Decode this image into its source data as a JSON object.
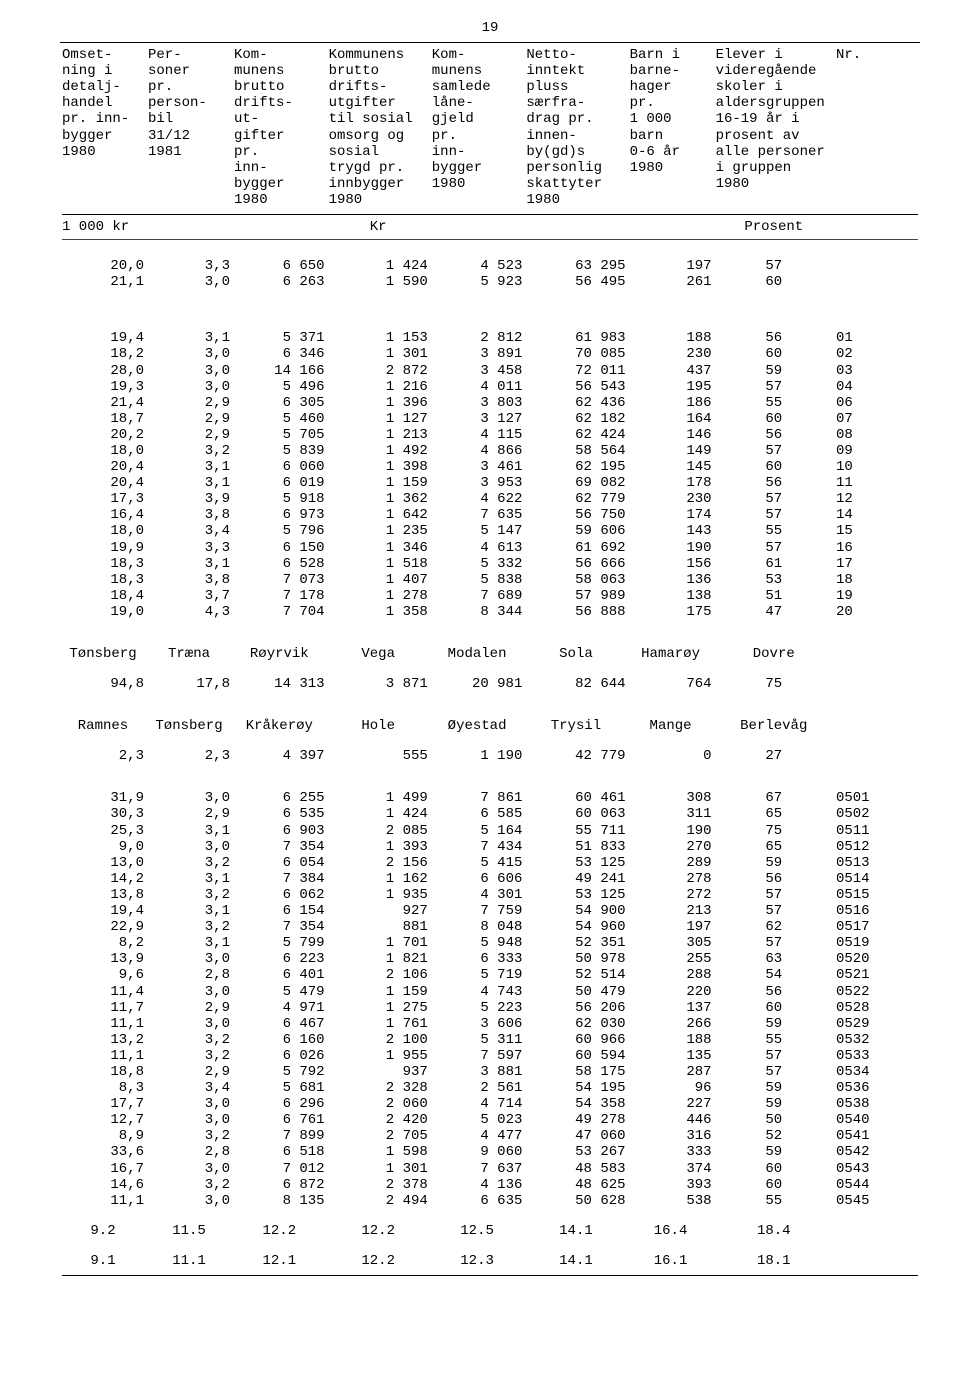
{
  "page_number": "19",
  "headers": [
    "Omset-\nning i\ndetalj-\nhandel\npr. inn-\nbygger\n1980",
    "Per-\nsoner\npr.\nperson-\nbil\n31/12\n1981",
    "Kom-\nmunens\nbrutto\ndrifts-\nut-\ngifter\npr.\ninn-\nbygger\n1980",
    "Kommunens\nbrutto\ndrifts-\nutgifter\ntil sosial\nomsorg og\nsosial\ntrygd pr.\ninnbygger\n1980",
    "Kom-\nmunens\nsamlede\nlåne-\ngjeld\npr.\ninn-\nbygger\n1980",
    "Netto-\ninntekt\npluss\nsærfra-\ndrag pr.\ninnen-\nby(gd)s\npersonlig\nskattyter\n1980",
    "Barn i\nbarne-\nhager\npr.\n1 000\nbarn\n0-6 år\n1980",
    "Elever i\nvideregående\nskoler i\naldersgruppen\n16-19 år i\nprosent av\nalle personer\ni gruppen\n1980",
    "Nr."
  ],
  "unit_row": [
    "1 000 kr",
    "",
    "",
    "Kr",
    "",
    "",
    "",
    "Prosent",
    ""
  ],
  "top_rows": [
    [
      "20,0",
      "3,3",
      "6 650",
      "1 424",
      "4 523",
      "63 295",
      "197",
      "57",
      ""
    ],
    [
      "21,1",
      "3,0",
      "6 263",
      "1 590",
      "5 923",
      "56 495",
      "261",
      "60",
      ""
    ]
  ],
  "block1": [
    [
      "19,4",
      "3,1",
      "5 371",
      "1 153",
      "2 812",
      "61 983",
      "188",
      "56",
      "01"
    ],
    [
      "18,2",
      "3,0",
      "6 346",
      "1 301",
      "3 891",
      "70 085",
      "230",
      "60",
      "02"
    ],
    [
      "28,0",
      "3,0",
      "14 166",
      "2 872",
      "3 458",
      "72 011",
      "437",
      "59",
      "03"
    ],
    [
      "19,3",
      "3,0",
      "5 496",
      "1 216",
      "4 011",
      "56 543",
      "195",
      "57",
      "04"
    ],
    [
      "21,4",
      "2,9",
      "6 305",
      "1 396",
      "3 803",
      "62 436",
      "186",
      "55",
      "06"
    ],
    [
      "18,7",
      "2,9",
      "5 460",
      "1 127",
      "3 127",
      "62 182",
      "164",
      "60",
      "07"
    ],
    [
      "20,2",
      "2,9",
      "5 705",
      "1 213",
      "4 115",
      "62 424",
      "146",
      "56",
      "08"
    ],
    [
      "18,0",
      "3,2",
      "5 839",
      "1 492",
      "4 866",
      "58 564",
      "149",
      "57",
      "09"
    ],
    [
      "20,4",
      "3,1",
      "6 060",
      "1 398",
      "3 461",
      "62 195",
      "145",
      "60",
      "10"
    ],
    [
      "20,4",
      "3,1",
      "6 019",
      "1 159",
      "3 953",
      "69 082",
      "178",
      "56",
      "11"
    ],
    [
      "17,3",
      "3,9",
      "5 918",
      "1 362",
      "4 622",
      "62 779",
      "230",
      "57",
      "12"
    ],
    [
      "16,4",
      "3,8",
      "6 973",
      "1 642",
      "7 635",
      "56 750",
      "174",
      "57",
      "14"
    ],
    [
      "18,0",
      "3,4",
      "5 796",
      "1 235",
      "5 147",
      "59 606",
      "143",
      "55",
      "15"
    ],
    [
      "19,9",
      "3,3",
      "6 150",
      "1 346",
      "4 613",
      "61 692",
      "190",
      "57",
      "16"
    ],
    [
      "18,3",
      "3,1",
      "6 528",
      "1 518",
      "5 332",
      "56 666",
      "156",
      "61",
      "17"
    ],
    [
      "18,3",
      "3,8",
      "7 073",
      "1 407",
      "5 838",
      "58 063",
      "136",
      "53",
      "18"
    ],
    [
      "18,4",
      "3,7",
      "7 178",
      "1 278",
      "7 689",
      "57 989",
      "138",
      "51",
      "19"
    ],
    [
      "19,0",
      "4,3",
      "7 704",
      "1 358",
      "8 344",
      "56 888",
      "175",
      "47",
      "20"
    ]
  ],
  "name_row1": [
    "Tønsberg",
    "Træna",
    "Røyrvik",
    "Vega",
    "Modalen",
    "Sola",
    "Hamarøy",
    "Dovre",
    ""
  ],
  "name_row1_values": [
    "94,8",
    "17,8",
    "14 313",
    "3 871",
    "20 981",
    "82 644",
    "764",
    "75",
    ""
  ],
  "name_row2": [
    "Ramnes",
    "Tønsberg",
    "Kråkerøy",
    "Hole",
    "Øyestad",
    "Trysil",
    "Mange",
    "Berlevåg",
    ""
  ],
  "name_row2_values": [
    "2,3",
    "2,3",
    "4 397",
    "555",
    "1 190",
    "42 779",
    "0",
    "27",
    ""
  ],
  "block2": [
    [
      "31,9",
      "3,0",
      "6 255",
      "1 499",
      "7 861",
      "60 461",
      "308",
      "67",
      "0501"
    ],
    [
      "30,3",
      "2,9",
      "6 535",
      "1 424",
      "6 585",
      "60 063",
      "311",
      "65",
      "0502"
    ],
    [
      "25,3",
      "3,1",
      "6 903",
      "2 085",
      "5 164",
      "55 711",
      "190",
      "75",
      "0511"
    ],
    [
      "9,0",
      "3,0",
      "7 354",
      "1 393",
      "7 434",
      "51 833",
      "270",
      "65",
      "0512"
    ],
    [
      "13,0",
      "3,2",
      "6 054",
      "2 156",
      "5 415",
      "53 125",
      "289",
      "59",
      "0513"
    ],
    [
      "14,2",
      "3,1",
      "7 384",
      "1 162",
      "6 606",
      "49 241",
      "278",
      "56",
      "0514"
    ],
    [
      "13,8",
      "3,2",
      "6 062",
      "1 935",
      "4 301",
      "53 125",
      "272",
      "57",
      "0515"
    ],
    [
      "19,4",
      "3,1",
      "6 154",
      "927",
      "7 759",
      "54 900",
      "213",
      "57",
      "0516"
    ],
    [
      "22,9",
      "3,2",
      "7 354",
      "881",
      "8 048",
      "54 960",
      "197",
      "62",
      "0517"
    ],
    [
      "8,2",
      "3,1",
      "5 799",
      "1 701",
      "5 948",
      "52 351",
      "305",
      "57",
      "0519"
    ],
    [
      "13,9",
      "3,0",
      "6 223",
      "1 821",
      "6 333",
      "50 978",
      "255",
      "63",
      "0520"
    ],
    [
      "9,6",
      "2,8",
      "6 401",
      "2 106",
      "5 719",
      "52 514",
      "288",
      "54",
      "0521"
    ],
    [
      "11,4",
      "3,0",
      "5 479",
      "1 159",
      "4 743",
      "50 479",
      "220",
      "56",
      "0522"
    ],
    [
      "11,7",
      "2,9",
      "4 971",
      "1 275",
      "5 223",
      "56 206",
      "137",
      "60",
      "0528"
    ],
    [
      "11,1",
      "3,0",
      "6 467",
      "1 761",
      "3 606",
      "62 030",
      "266",
      "59",
      "0529"
    ],
    [
      "13,2",
      "3,2",
      "6 160",
      "2 100",
      "5 311",
      "60 966",
      "188",
      "55",
      "0532"
    ],
    [
      "11,1",
      "3,2",
      "6 026",
      "1 955",
      "7 597",
      "60 594",
      "135",
      "57",
      "0533"
    ],
    [
      "18,8",
      "2,9",
      "5 792",
      "937",
      "3 881",
      "58 175",
      "287",
      "57",
      "0534"
    ],
    [
      "8,3",
      "3,4",
      "5 681",
      "2 328",
      "2 561",
      "54 195",
      "96",
      "59",
      "0536"
    ],
    [
      "17,7",
      "3,0",
      "6 296",
      "2 060",
      "4 714",
      "54 358",
      "227",
      "59",
      "0538"
    ],
    [
      "12,7",
      "3,0",
      "6 761",
      "2 420",
      "5 023",
      "49 278",
      "446",
      "50",
      "0540"
    ],
    [
      "8,9",
      "3,2",
      "7 899",
      "2 705",
      "4 477",
      "47 060",
      "316",
      "52",
      "0541"
    ],
    [
      "33,6",
      "2,8",
      "6 518",
      "1 598",
      "9 060",
      "53 267",
      "333",
      "59",
      "0542"
    ],
    [
      "16,7",
      "3,0",
      "7 012",
      "1 301",
      "7 637",
      "48 583",
      "374",
      "60",
      "0543"
    ],
    [
      "14,6",
      "3,2",
      "6 872",
      "2 378",
      "4 136",
      "48 625",
      "393",
      "60",
      "0544"
    ],
    [
      "11,1",
      "3,0",
      "8 135",
      "2 494",
      "6 635",
      "50 628",
      "538",
      "55",
      "0545"
    ]
  ],
  "footer_rows": [
    [
      "9.2",
      "11.5",
      "12.2",
      "12.2",
      "12.5",
      "14.1",
      "16.4",
      "18.4",
      ""
    ],
    [
      "9.1",
      "11.1",
      "12.1",
      "12.2",
      "12.3",
      "14.1",
      "16.1",
      "18.1",
      ""
    ]
  ]
}
